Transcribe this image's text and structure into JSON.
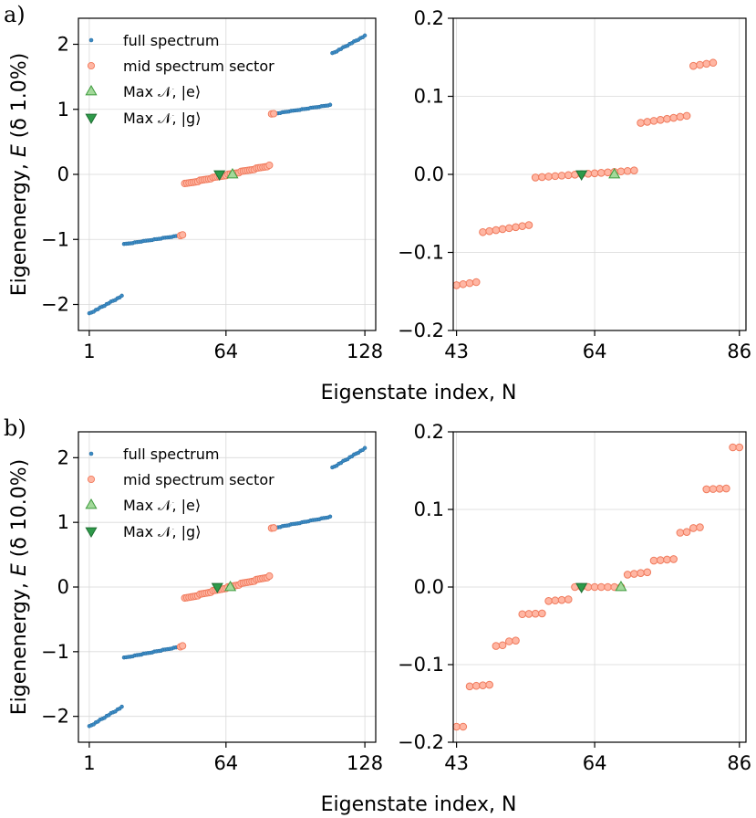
{
  "figure": {
    "xlabel": "Eigenstate index, N",
    "ylabel_prefix": "Eigenenergy, ",
    "colors": {
      "full": "#3b8bc4",
      "full_edge": "#2a6fa3",
      "mid": "#ffb6a3",
      "mid_edge": "#f07a5c",
      "e": "#a3d99a",
      "e_edge": "#3c9a3c",
      "g": "#2e9a4a",
      "g_edge": "#1d6e31"
    }
  },
  "chart_data": [
    {
      "panel": "a)",
      "type": "scatter",
      "ylabel_param": "(δ 1.0%)",
      "xlim": [
        -4,
        133
      ],
      "ylim": [
        -2.4,
        2.4
      ],
      "xticks": [
        1,
        64,
        128
      ],
      "yticks": [
        -2,
        -1,
        0,
        1,
        2
      ],
      "legend": {
        "placement": "top-left",
        "entries": [
          "full spectrum",
          "mid spectrum sector",
          "Max 𝒩, |e⟩",
          "Max 𝒩, |g⟩"
        ]
      },
      "grid": true,
      "levels": [
        {
          "n": 16,
          "center": -2.0,
          "spread": 0.27
        },
        {
          "n": 28,
          "center": -1.0,
          "spread": 0.14
        },
        {
          "n": 40,
          "center": 0.0,
          "spread": 0.28
        },
        {
          "n": 28,
          "center": 1.0,
          "spread": 0.14
        },
        {
          "n": 16,
          "center": 2.0,
          "spread": 0.27
        }
      ],
      "mid_range": [
        43,
        86
      ],
      "e_point": {
        "x": 67,
        "y": 0.0
      },
      "g_point": {
        "x": 61,
        "y": 0.0
      }
    },
    {
      "panel": "",
      "type": "scatter",
      "xlim": [
        42.5,
        87
      ],
      "ylim": [
        -0.2,
        0.2
      ],
      "xticks": [
        43,
        64,
        86
      ],
      "yticks": [
        -0.2,
        -0.1,
        0.0,
        0.1,
        0.2
      ],
      "ytick_labels": [
        "−0.2",
        "−0.1",
        "0.0",
        "0.1",
        "0.2"
      ],
      "grid": true,
      "x_start": 43,
      "clusters": [
        {
          "n": 4,
          "start": -0.142,
          "end": -0.138
        },
        {
          "n": 8,
          "start": -0.074,
          "end": -0.065
        },
        {
          "n": 16,
          "start": -0.004,
          "end": 0.005
        },
        {
          "n": 8,
          "start": 0.066,
          "end": 0.075
        },
        {
          "n": 4,
          "start": 0.139,
          "end": 0.143
        }
      ],
      "e_point": {
        "x": 67,
        "y": 0.0
      },
      "g_point": {
        "x": 62,
        "y": 0.0
      }
    },
    {
      "panel": "b)",
      "type": "scatter",
      "ylabel_param": "(δ 10.0%)",
      "xlim": [
        -4,
        133
      ],
      "ylim": [
        -2.4,
        2.4
      ],
      "xticks": [
        1,
        64,
        128
      ],
      "yticks": [
        -2,
        -1,
        0,
        1,
        2
      ],
      "legend": {
        "placement": "top-left",
        "entries": [
          "full spectrum",
          "mid spectrum sector",
          "Max 𝒩, |e⟩",
          "Max 𝒩, |g⟩"
        ]
      },
      "grid": true,
      "levels": [
        {
          "n": 16,
          "center": -2.0,
          "spread": 0.3
        },
        {
          "n": 28,
          "center": -1.0,
          "spread": 0.18
        },
        {
          "n": 40,
          "center": 0.0,
          "spread": 0.34
        },
        {
          "n": 28,
          "center": 1.0,
          "spread": 0.18
        },
        {
          "n": 16,
          "center": 2.0,
          "spread": 0.3
        }
      ],
      "mid_range": [
        43,
        86
      ],
      "e_point": {
        "x": 66,
        "y": 0.0
      },
      "g_point": {
        "x": 60,
        "y": 0.0
      }
    },
    {
      "panel": "",
      "type": "scatter",
      "xlim": [
        42.5,
        87
      ],
      "ylim": [
        -0.2,
        0.2
      ],
      "xticks": [
        43,
        64,
        86
      ],
      "yticks": [
        -0.2,
        -0.1,
        0.0,
        0.1,
        0.2
      ],
      "ytick_labels": [
        "−0.2",
        "−0.1",
        "0.0",
        "0.1",
        "0.2"
      ],
      "grid": true,
      "x_start": 43,
      "clusters": [
        {
          "n": 2,
          "start": -0.18,
          "end": -0.18
        },
        {
          "n": 4,
          "start": -0.128,
          "end": -0.126
        },
        {
          "n": 2,
          "start": -0.076,
          "end": -0.075
        },
        {
          "n": 2,
          "start": -0.07,
          "end": -0.069
        },
        {
          "n": 4,
          "start": -0.035,
          "end": -0.034
        },
        {
          "n": 4,
          "start": -0.018,
          "end": -0.016
        },
        {
          "n": 8,
          "start": 0.0,
          "end": 0.0
        },
        {
          "n": 4,
          "start": 0.016,
          "end": 0.019
        },
        {
          "n": 4,
          "start": 0.034,
          "end": 0.036
        },
        {
          "n": 2,
          "start": 0.07,
          "end": 0.071
        },
        {
          "n": 2,
          "start": 0.076,
          "end": 0.077
        },
        {
          "n": 4,
          "start": 0.126,
          "end": 0.127
        },
        {
          "n": 2,
          "start": 0.18,
          "end": 0.18
        }
      ],
      "e_point": {
        "x": 68,
        "y": 0.0
      },
      "g_point": {
        "x": 62,
        "y": 0.0
      }
    }
  ]
}
